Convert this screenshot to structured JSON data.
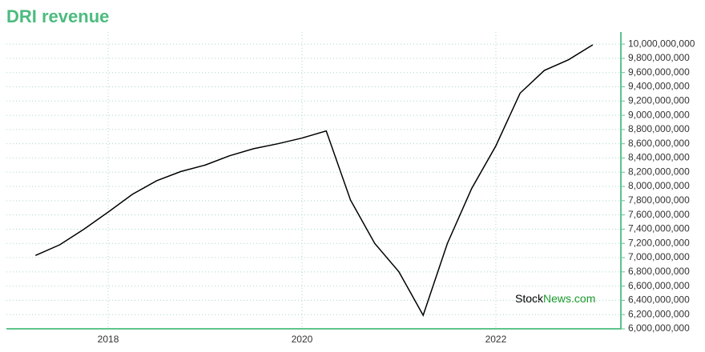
{
  "chart_data": {
    "type": "line",
    "title": "DRI revenue",
    "x": [
      2017.25,
      2017.5,
      2017.75,
      2018.0,
      2018.25,
      2018.5,
      2018.75,
      2019.0,
      2019.25,
      2019.5,
      2019.75,
      2020.0,
      2020.25,
      2020.5,
      2020.75,
      2021.0,
      2021.25,
      2021.5,
      2021.75,
      2022.0,
      2022.25,
      2022.5,
      2022.75,
      2023.0
    ],
    "series": [
      {
        "name": "DRI revenue",
        "color": "#000000",
        "values": [
          7030000000,
          7180000000,
          7400000000,
          7640000000,
          7890000000,
          8080000000,
          8210000000,
          8300000000,
          8430000000,
          8530000000,
          8600000000,
          8680000000,
          8780000000,
          7810000000,
          7200000000,
          6800000000,
          6190000000,
          7200000000,
          7970000000,
          8570000000,
          9310000000,
          9630000000,
          9780000000,
          9990000000
        ]
      }
    ],
    "xlim": [
      2016.95,
      2023.29
    ],
    "xticks": [
      2018,
      2020,
      2022
    ],
    "ylim": [
      6000000000,
      10170000000
    ],
    "yticks": [
      {
        "value": 6000000000,
        "label": "6,000,000,000"
      },
      {
        "value": 6200000000,
        "label": "6,200,000,000"
      },
      {
        "value": 6400000000,
        "label": "6,400,000,000"
      },
      {
        "value": 6600000000,
        "label": "6,600,000,000"
      },
      {
        "value": 6800000000,
        "label": "6,800,000,000"
      },
      {
        "value": 7000000000,
        "label": "7,000,000,000"
      },
      {
        "value": 7200000000,
        "label": "7,200,000,000"
      },
      {
        "value": 7400000000,
        "label": "7,400,000,000"
      },
      {
        "value": 7600000000,
        "label": "7,600,000,000"
      },
      {
        "value": 7800000000,
        "label": "7,800,000,000"
      },
      {
        "value": 8000000000,
        "label": "8,000,000,000"
      },
      {
        "value": 8200000000,
        "label": "8,200,000,000"
      },
      {
        "value": 8400000000,
        "label": "8,400,000,000"
      },
      {
        "value": 8600000000,
        "label": "8,600,000,000"
      },
      {
        "value": 8800000000,
        "label": "8,800,000,000"
      },
      {
        "value": 9000000000,
        "label": "9,000,000,000"
      },
      {
        "value": 9200000000,
        "label": "9,200,000,000"
      },
      {
        "value": 9400000000,
        "label": "9,400,000,000"
      },
      {
        "value": 9600000000,
        "label": "9,600,000,000"
      },
      {
        "value": 9800000000,
        "label": "9,800,000,000"
      },
      {
        "value": 10000000000,
        "label": "10,000,000,000"
      }
    ],
    "grid": true,
    "axis_color": "#5cc48c",
    "watermark": {
      "left": "Stock",
      "right": "News.com"
    }
  }
}
